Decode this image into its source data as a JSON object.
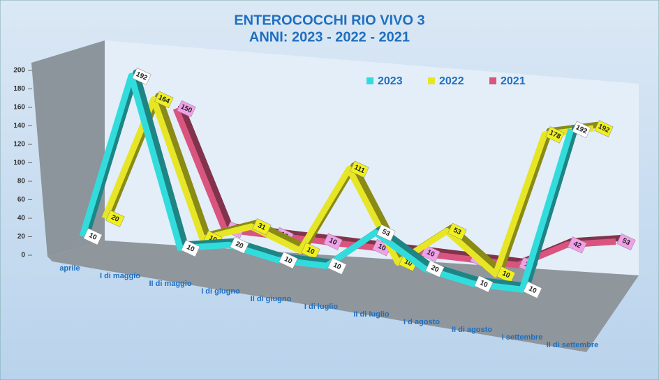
{
  "chart_data": {
    "type": "line",
    "title": "ENTEROCOCCHI RIO VIVO 3",
    "subtitle": "ANNI: 2023 - 2022 - 2021",
    "categories": [
      "aprile",
      "I di maggio",
      "II di maggio",
      "I di giugno",
      "II di giugno",
      "I di luglio",
      "II di luglio",
      "I d agosto",
      "II di agosto",
      "I settembre",
      "II di settembre"
    ],
    "series": [
      {
        "name": "2023",
        "color": "#33dcdc",
        "values": [
          10,
          192,
          10,
          20,
          10,
          10,
          53,
          20,
          10,
          10,
          192
        ]
      },
      {
        "name": "2022",
        "color": "#e6e626",
        "values": [
          20,
          164,
          10,
          31,
          10,
          111,
          10,
          53,
          10,
          178,
          192
        ]
      },
      {
        "name": "2021",
        "color": "#d9557f",
        "values": [
          null,
          150,
          10,
          10,
          10,
          10,
          10,
          10,
          10,
          42,
          53
        ]
      }
    ],
    "ylim": [
      0,
      200
    ],
    "yticks": [
      0,
      20,
      40,
      60,
      80,
      100,
      120,
      140,
      160,
      180,
      200
    ],
    "legend": "top-right"
  }
}
